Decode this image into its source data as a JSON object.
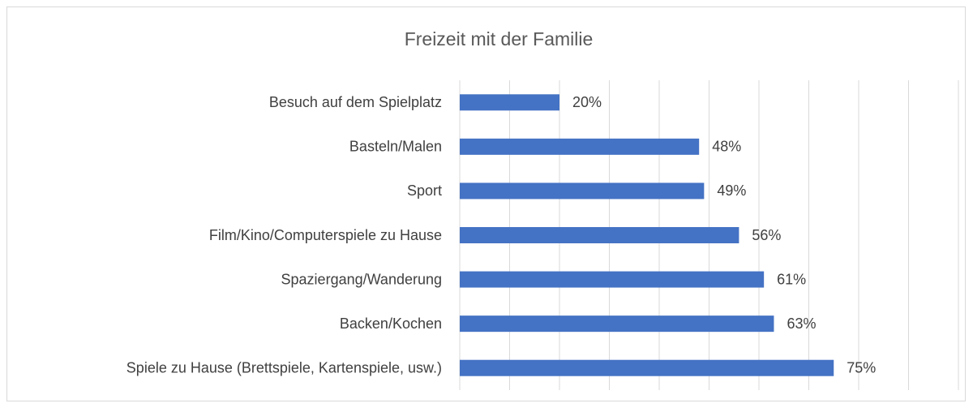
{
  "chart_data": {
    "type": "bar",
    "orientation": "horizontal",
    "title": "Freizeit mit der Familie",
    "categories": [
      "Besuch auf dem Spielplatz",
      "Basteln/Malen",
      "Sport",
      "Film/Kino/Computerspiele zu Hause",
      "Spaziergang/Wanderung",
      "Backen/Kochen",
      "Spiele zu Hause (Brettspiele, Kartenspiele, usw.)"
    ],
    "values": [
      20,
      48,
      49,
      56,
      61,
      63,
      75
    ],
    "value_labels": [
      "20%",
      "48%",
      "49%",
      "56%",
      "61%",
      "63%",
      "75%"
    ],
    "color": "#4472c4",
    "xlim": [
      0,
      100
    ],
    "xticks": [
      0,
      10,
      20,
      30,
      40,
      50,
      60,
      70,
      80,
      90,
      100
    ],
    "grid": true
  }
}
